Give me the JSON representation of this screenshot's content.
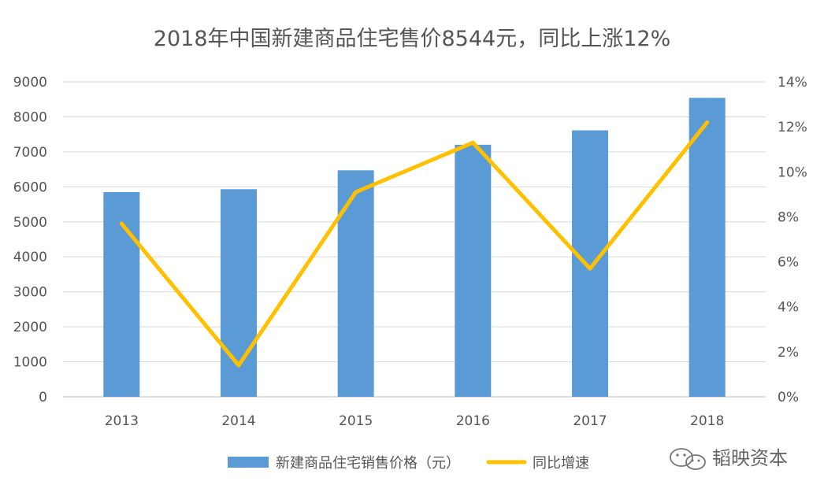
{
  "chart_data": {
    "type": "bar",
    "title": "2018年中国新建商品住宅售价8544元，同比上涨12%",
    "categories": [
      "2013",
      "2014",
      "2015",
      "2016",
      "2017",
      "2018"
    ],
    "series": [
      {
        "name": "新建商品住宅销售价格（元）",
        "type": "bar",
        "axis": "left",
        "color": "#5b9bd5",
        "values": [
          5850,
          5933,
          6473,
          7203,
          7614,
          8544
        ]
      },
      {
        "name": "同比增速",
        "type": "line",
        "axis": "right",
        "color": "#ffc000",
        "values": [
          7.7,
          1.4,
          9.1,
          11.3,
          5.7,
          12.2
        ]
      }
    ],
    "y_left": {
      "ylim": [
        0,
        9000
      ],
      "ticks": [
        0,
        1000,
        2000,
        3000,
        4000,
        5000,
        6000,
        7000,
        8000,
        9000
      ],
      "tick_labels": [
        "0",
        "1000",
        "2000",
        "3000",
        "4000",
        "5000",
        "6000",
        "7000",
        "8000",
        "9000"
      ]
    },
    "y_right": {
      "ylim": [
        0,
        14
      ],
      "ticks": [
        0,
        2,
        4,
        6,
        8,
        10,
        12,
        14
      ],
      "tick_labels": [
        "0%",
        "2%",
        "4%",
        "6%",
        "8%",
        "10%",
        "12%",
        "14%"
      ]
    },
    "grid": true,
    "legend_position": "bottom"
  },
  "watermark": {
    "text": "韬映资本",
    "icon": "wechat-icon"
  }
}
